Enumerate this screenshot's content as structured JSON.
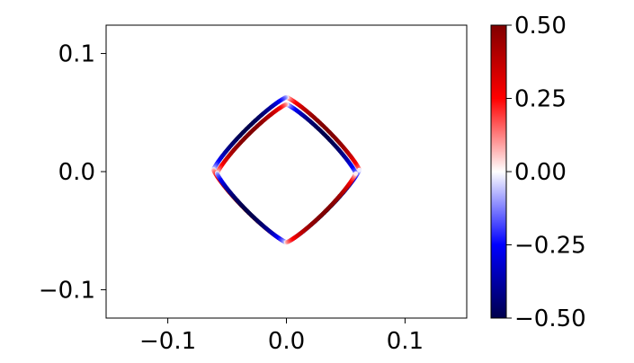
{
  "chart_data": {
    "type": "scatter",
    "title": "",
    "xlabel": "",
    "ylabel": "",
    "xlim": [
      -0.152,
      0.152
    ],
    "ylim": [
      -0.124,
      0.124
    ],
    "x_ticks": [
      {
        "value": -0.1,
        "label": "−0.1"
      },
      {
        "value": 0.0,
        "label": "0.0"
      },
      {
        "value": 0.1,
        "label": "0.1"
      }
    ],
    "y_ticks": [
      {
        "value": 0.1,
        "label": "0.1"
      },
      {
        "value": 0.0,
        "label": "0.0"
      },
      {
        "value": -0.1,
        "label": "−0.1"
      }
    ],
    "grid": false,
    "colormap": {
      "name": "seismic",
      "min": -0.5,
      "max": 0.5,
      "stops": [
        "#00004c",
        "#0000ff",
        "#ffffff",
        "#ff0000",
        "#800000"
      ],
      "ticks": [
        {
          "value": 0.5,
          "label": "0.50"
        },
        {
          "value": 0.25,
          "label": "0.25"
        },
        {
          "value": 0.0,
          "label": "0.00"
        },
        {
          "value": -0.25,
          "label": "−0.25"
        },
        {
          "value": -0.5,
          "label": "−0.50"
        }
      ]
    },
    "series": [
      {
        "shape": "astroid",
        "center_y": 0.0015,
        "radius": 0.0615,
        "points": 360,
        "value_amplitude": 0.5
      },
      {
        "shape": "astroid",
        "center_y": -0.0015,
        "radius": 0.0585,
        "points": 360,
        "value_amplitude": 0.5
      }
    ]
  }
}
